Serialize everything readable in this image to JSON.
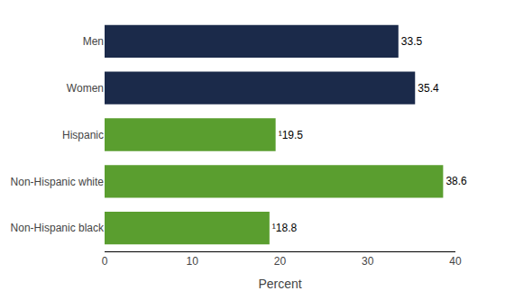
{
  "chart_data": {
    "type": "bar",
    "orientation": "horizontal",
    "categories": [
      "Non-Hispanic black",
      "Non-Hispanic white",
      "Hispanic",
      "Women",
      "Men"
    ],
    "values": [
      18.8,
      38.6,
      19.5,
      35.4,
      33.5
    ],
    "value_labels": [
      "¹18.8",
      "38.6",
      "¹19.5",
      "35.4",
      "33.5"
    ],
    "data_labels": true,
    "colors": [
      "#5a9e2f",
      "#5a9e2f",
      "#5a9e2f",
      "#1b2a4a",
      "#1b2a4a"
    ],
    "xlabel": "Percent",
    "xlim": [
      0,
      40
    ],
    "xticks": [
      0,
      10,
      20,
      30,
      40
    ],
    "grid": false
  }
}
